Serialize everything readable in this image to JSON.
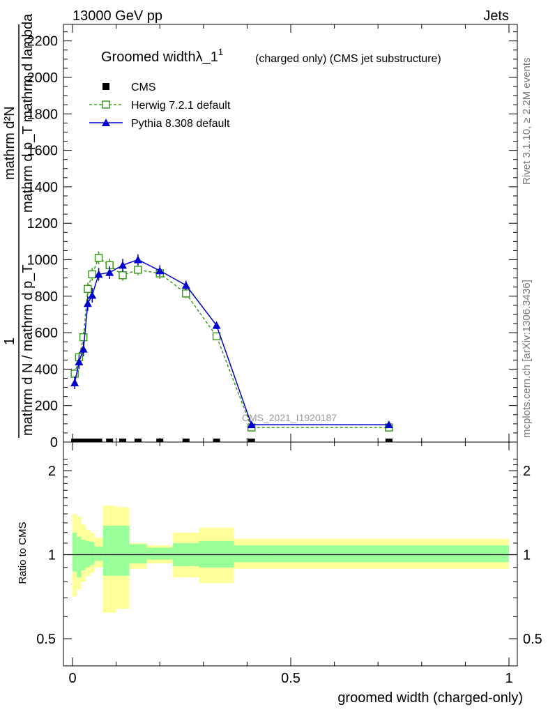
{
  "header": {
    "left": "13000 GeV pp",
    "right": "Jets"
  },
  "side_labels": {
    "rivet": "Rivet 3.1.10, ≥ 2.2M events",
    "mcplots": "mcplots.cern.ch [arXiv:1306.3436]"
  },
  "watermark": "CMS_2021_I1920187",
  "main_plot": {
    "title_main": "Groomed widthλ_1",
    "title_sup": "1",
    "title_rest": "(charged only) (CMS jet substructure)",
    "ylabel_top_numer": "mathrm d²N",
    "ylabel_top_denom": "mathrm d p_T mathrm d lambda",
    "ylabel_one": "1",
    "ylabel_bottom": "mathrm d N / mathrm d p_T",
    "yticks": [
      "0",
      "200",
      "400",
      "600",
      "800",
      "1000",
      "1200",
      "1400",
      "1600",
      "1800",
      "2000",
      "2200"
    ],
    "legend": {
      "cms": "CMS",
      "herwig": "Herwig 7.2.1 default",
      "pythia": "Pythia 8.308 default"
    }
  },
  "ratio_plot": {
    "ylabel": "Ratio to CMS",
    "yticks": [
      "0.5",
      "1",
      "2"
    ],
    "xticks": [
      "0",
      "0.5",
      "1"
    ],
    "xlabel": "groomed width (charged-only)"
  },
  "colors": {
    "herwig": "#3a9a1e",
    "pythia": "#0000cc",
    "band_inner": "#99ff99",
    "band_outer": "#ffff99"
  },
  "chart_data": {
    "type": "line",
    "title": "Groomed width λ_1^1 (charged only) (CMS jet substructure)",
    "xlabel": "groomed width (charged-only)",
    "xlim": [
      0,
      1
    ],
    "ylim": [
      0,
      2300
    ],
    "ratio_ylim": [
      0.4,
      2.3
    ],
    "ratio_scale": "log",
    "grid": false,
    "legend_position": "top-left",
    "bin_edges": [
      0.0,
      0.01,
      0.02,
      0.03,
      0.04,
      0.05,
      0.07,
      0.1,
      0.13,
      0.17,
      0.23,
      0.29,
      0.37,
      0.45,
      1.0
    ],
    "cms": {
      "x": [
        0.005,
        0.015,
        0.025,
        0.035,
        0.045,
        0.06,
        0.085,
        0.115,
        0.15,
        0.2,
        0.26,
        0.33,
        0.41,
        0.725
      ],
      "y": [
        0,
        0,
        0,
        0,
        0,
        0,
        0,
        0,
        0,
        0,
        0,
        0,
        0,
        0
      ]
    },
    "series": [
      {
        "name": "Herwig 7.2.1 default",
        "x": [
          0.005,
          0.015,
          0.025,
          0.035,
          0.045,
          0.06,
          0.085,
          0.115,
          0.15,
          0.2,
          0.26,
          0.33,
          0.41,
          0.725
        ],
        "y": [
          375,
          465,
          575,
          840,
          920,
          1010,
          970,
          915,
          945,
          925,
          815,
          580,
          80,
          80
        ],
        "yerr": [
          25,
          28,
          30,
          35,
          35,
          35,
          35,
          30,
          30,
          30,
          25,
          20,
          10,
          10
        ]
      },
      {
        "name": "Pythia 8.308 default",
        "x": [
          0.005,
          0.015,
          0.025,
          0.035,
          0.045,
          0.06,
          0.085,
          0.115,
          0.15,
          0.2,
          0.26,
          0.33,
          0.41,
          0.725
        ],
        "y": [
          325,
          440,
          510,
          760,
          805,
          920,
          930,
          970,
          1000,
          940,
          860,
          640,
          95,
          95
        ],
        "yerr": [
          35,
          40,
          40,
          40,
          40,
          35,
          35,
          35,
          30,
          30,
          25,
          20,
          10,
          10
        ]
      }
    ],
    "cms_band_inner": [
      [
        0.87,
        1.2
      ],
      [
        0.83,
        1.16
      ],
      [
        0.88,
        1.13
      ],
      [
        0.9,
        1.12
      ],
      [
        0.92,
        1.11
      ],
      [
        0.95,
        1.07
      ],
      [
        0.84,
        1.27
      ],
      [
        0.84,
        1.27
      ],
      [
        0.93,
        1.09
      ],
      [
        0.96,
        1.06
      ],
      [
        0.91,
        1.1
      ],
      [
        0.9,
        1.12
      ],
      [
        0.94,
        1.08
      ],
      [
        0.94,
        1.08
      ]
    ],
    "cms_band_outer": [
      [
        0.71,
        1.4
      ],
      [
        0.75,
        1.37
      ],
      [
        0.8,
        1.28
      ],
      [
        0.84,
        1.23
      ],
      [
        0.86,
        1.2
      ],
      [
        0.9,
        1.15
      ],
      [
        0.62,
        1.5
      ],
      [
        0.64,
        1.48
      ],
      [
        0.89,
        1.1
      ],
      [
        0.93,
        1.08
      ],
      [
        0.83,
        1.2
      ],
      [
        0.79,
        1.25
      ],
      [
        0.89,
        1.14
      ],
      [
        0.89,
        1.14
      ]
    ]
  }
}
